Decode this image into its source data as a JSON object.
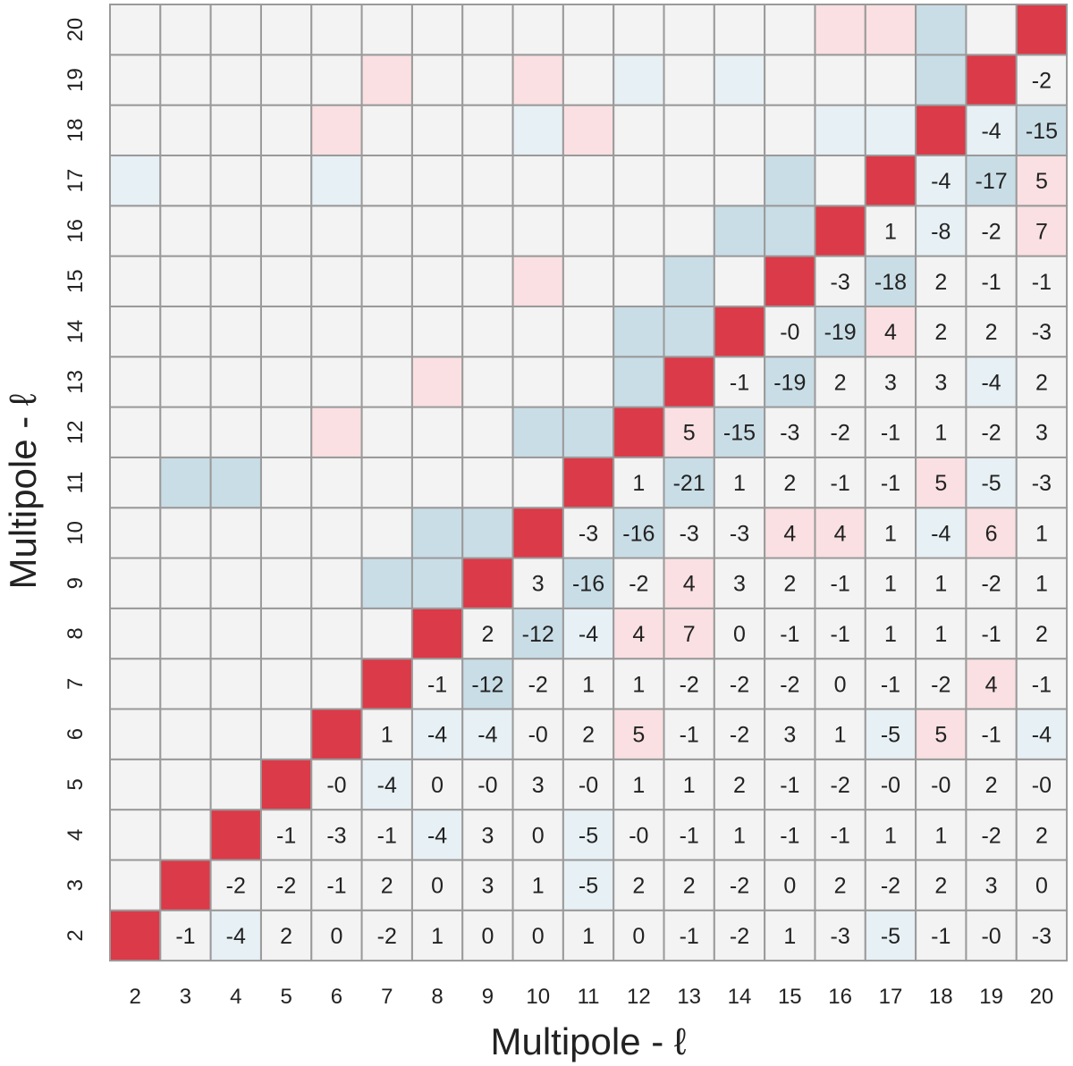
{
  "chart_data": {
    "type": "heatmap",
    "title": "",
    "xlabel": "Multipole - ℓ",
    "ylabel": "Multipole - ℓ",
    "x_categories": [
      "2",
      "3",
      "4",
      "5",
      "6",
      "7",
      "8",
      "9",
      "10",
      "11",
      "12",
      "13",
      "14",
      "15",
      "16",
      "17",
      "18",
      "19",
      "20"
    ],
    "y_categories": [
      "2",
      "3",
      "4",
      "5",
      "6",
      "7",
      "8",
      "9",
      "10",
      "11",
      "12",
      "13",
      "14",
      "15",
      "16",
      "17",
      "18",
      "19",
      "20"
    ],
    "y_axis_direction": "bottom-to-top",
    "annotation": "upper-right triangle (x > y) shows values; lower-left triangle colored only; diagonal is maximum",
    "colors": {
      "diagonal": "#db3a48",
      "neutral": "#f3f3f3",
      "negative": "#c9dde6",
      "positive": "#fae0e2",
      "grid": "#9a9a9a"
    },
    "matrix_upper": [
      [
        "",
        "-1",
        "-4",
        "2",
        "0",
        "-2",
        "1",
        "0",
        "0",
        "1",
        "0",
        "-1",
        "-2",
        "1",
        "-3",
        "-5",
        "-1",
        "-0",
        "-3"
      ],
      [
        "",
        "",
        "-2",
        "-2",
        "-1",
        "2",
        "0",
        "3",
        "1",
        "-5",
        "2",
        "2",
        "-2",
        "0",
        "2",
        "-2",
        "2",
        "3",
        "0"
      ],
      [
        "",
        "",
        "",
        "-1",
        "-3",
        "-1",
        "-4",
        "3",
        "0",
        "-5",
        "-0",
        "-1",
        "1",
        "-1",
        "-1",
        "1",
        "1",
        "-2",
        "2"
      ],
      [
        "",
        "",
        "",
        "",
        "-0",
        "-4",
        "0",
        "-0",
        "3",
        "-0",
        "1",
        "1",
        "2",
        "-1",
        "-2",
        "-0",
        "-0",
        "2",
        "-0"
      ],
      [
        "",
        "",
        "",
        "",
        "",
        "1",
        "-4",
        "-4",
        "-0",
        "2",
        "5",
        "-1",
        "-2",
        "3",
        "1",
        "-5",
        "5",
        "-1",
        "-4"
      ],
      [
        "",
        "",
        "",
        "",
        "",
        "",
        "-1",
        "-12",
        "-2",
        "1",
        "1",
        "-2",
        "-2",
        "-2",
        "0",
        "-1",
        "-2",
        "4",
        "-1"
      ],
      [
        "",
        "",
        "",
        "",
        "",
        "",
        "",
        "2",
        "-12",
        "-4",
        "4",
        "7",
        "0",
        "-1",
        "-1",
        "1",
        "1",
        "-1",
        "2"
      ],
      [
        "",
        "",
        "",
        "",
        "",
        "",
        "",
        "",
        "3",
        "-16",
        "-2",
        "4",
        "3",
        "2",
        "-1",
        "1",
        "1",
        "-2",
        "1"
      ],
      [
        "",
        "",
        "",
        "",
        "",
        "",
        "",
        "",
        "",
        "-3",
        "-16",
        "-3",
        "-3",
        "4",
        "4",
        "1",
        "-4",
        "6",
        "1"
      ],
      [
        "",
        "",
        "",
        "",
        "",
        "",
        "",
        "",
        "",
        "",
        "1",
        "-21",
        "1",
        "2",
        "-1",
        "-1",
        "5",
        "-5",
        "-3"
      ],
      [
        "",
        "",
        "",
        "",
        "",
        "",
        "",
        "",
        "",
        "",
        "",
        "5",
        "-15",
        "-3",
        "-2",
        "-1",
        "1",
        "-2",
        "3"
      ],
      [
        "",
        "",
        "",
        "",
        "",
        "",
        "",
        "",
        "",
        "",
        "",
        "",
        "-1",
        "-19",
        "2",
        "3",
        "3",
        "-4",
        "2"
      ],
      [
        "",
        "",
        "",
        "",
        "",
        "",
        "",
        "",
        "",
        "",
        "",
        "",
        "",
        "-0",
        "-19",
        "4",
        "2",
        "2",
        "-3"
      ],
      [
        "",
        "",
        "",
        "",
        "",
        "",
        "",
        "",
        "",
        "",
        "",
        "",
        "",
        "",
        "-3",
        "-18",
        "2",
        "-1",
        "-1"
      ],
      [
        "",
        "",
        "",
        "",
        "",
        "",
        "",
        "",
        "",
        "",
        "",
        "",
        "",
        "",
        "",
        "1",
        "-8",
        "-2",
        "7"
      ],
      [
        "",
        "",
        "",
        "",
        "",
        "",
        "",
        "",
        "",
        "",
        "",
        "",
        "",
        "",
        "",
        "",
        "-4",
        "-17",
        "5"
      ],
      [
        "",
        "",
        "",
        "",
        "",
        "",
        "",
        "",
        "",
        "",
        "",
        "",
        "",
        "",
        "",
        "",
        "",
        "-4",
        "-15"
      ],
      [
        "",
        "",
        "",
        "",
        "",
        "",
        "",
        "",
        "",
        "",
        "",
        "",
        "",
        "",
        "",
        "",
        "",
        "",
        "-2"
      ],
      [
        "",
        "",
        "",
        "",
        "",
        "",
        "",
        "",
        "",
        "",
        "",
        "",
        "",
        "",
        "",
        "",
        "",
        "",
        ""
      ]
    ],
    "lower_shading_codes": [
      "...................",
      "...................",
      "...................",
      "...................",
      "...................",
      ".....:.............",
      "......:............",
      ".....::............",
      "......:::..........",
      ".::......::........",
      "....P...::.........",
      "......P...:P.......",
      "..........::.......",
      "........P..:.......",
      "............::.....",
      "n...n........:.....",
      "....P...nP....nn...",
      ".....P..P.n.n...:..",
      "..............PP:.."
    ]
  }
}
